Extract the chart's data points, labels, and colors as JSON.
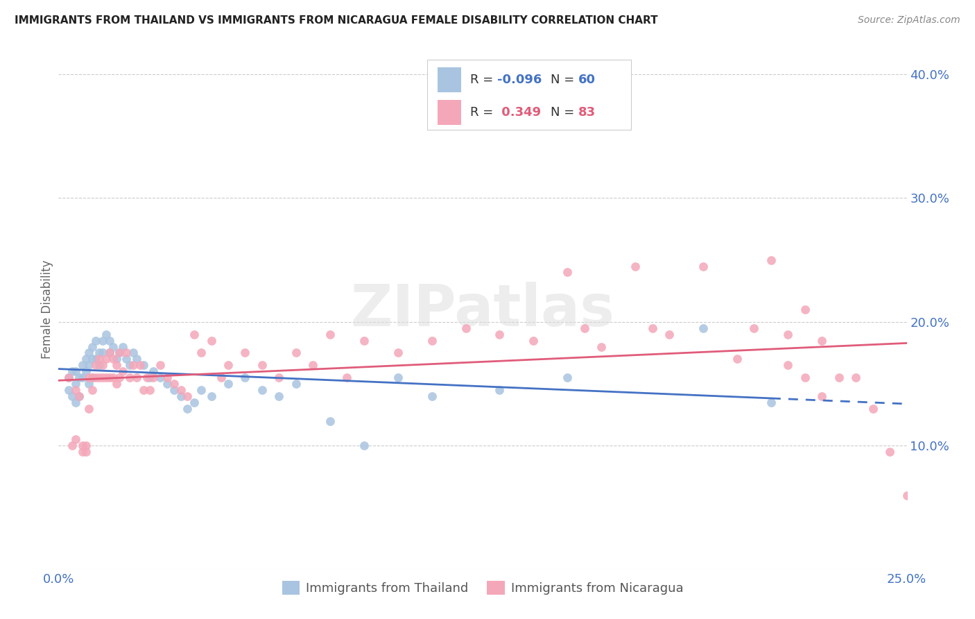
{
  "title": "IMMIGRANTS FROM THAILAND VS IMMIGRANTS FROM NICARAGUA FEMALE DISABILITY CORRELATION CHART",
  "source": "Source: ZipAtlas.com",
  "ylabel": "Female Disability",
  "x_min": 0.0,
  "x_max": 0.25,
  "y_min": 0.0,
  "y_max": 0.42,
  "thailand_color": "#a8c4e0",
  "nicaragua_color": "#f4a7b9",
  "thailand_line_color": "#4472c4",
  "nicaragua_line_color": "#e05c7a",
  "R_thailand": -0.096,
  "N_thailand": 60,
  "R_nicaragua": 0.349,
  "N_nicaragua": 83,
  "background_color": "#ffffff",
  "thailand_x": [
    0.003,
    0.003,
    0.004,
    0.004,
    0.005,
    0.005,
    0.005,
    0.006,
    0.006,
    0.007,
    0.007,
    0.008,
    0.008,
    0.009,
    0.009,
    0.009,
    0.01,
    0.01,
    0.01,
    0.011,
    0.011,
    0.012,
    0.012,
    0.013,
    0.013,
    0.014,
    0.015,
    0.015,
    0.016,
    0.017,
    0.018,
    0.019,
    0.02,
    0.021,
    0.022,
    0.023,
    0.025,
    0.027,
    0.028,
    0.03,
    0.032,
    0.034,
    0.036,
    0.038,
    0.04,
    0.042,
    0.045,
    0.05,
    0.055,
    0.06,
    0.065,
    0.07,
    0.08,
    0.09,
    0.1,
    0.11,
    0.13,
    0.15,
    0.19,
    0.21
  ],
  "thailand_y": [
    0.155,
    0.145,
    0.16,
    0.14,
    0.16,
    0.15,
    0.135,
    0.155,
    0.14,
    0.165,
    0.155,
    0.17,
    0.16,
    0.175,
    0.165,
    0.15,
    0.18,
    0.17,
    0.155,
    0.185,
    0.17,
    0.175,
    0.165,
    0.185,
    0.175,
    0.19,
    0.185,
    0.175,
    0.18,
    0.17,
    0.175,
    0.18,
    0.17,
    0.165,
    0.175,
    0.17,
    0.165,
    0.155,
    0.16,
    0.155,
    0.15,
    0.145,
    0.14,
    0.13,
    0.135,
    0.145,
    0.14,
    0.15,
    0.155,
    0.145,
    0.14,
    0.15,
    0.12,
    0.1,
    0.155,
    0.14,
    0.145,
    0.155,
    0.195,
    0.135
  ],
  "nicaragua_x": [
    0.003,
    0.004,
    0.005,
    0.005,
    0.006,
    0.007,
    0.007,
    0.008,
    0.008,
    0.009,
    0.009,
    0.01,
    0.01,
    0.011,
    0.011,
    0.012,
    0.012,
    0.013,
    0.013,
    0.014,
    0.014,
    0.015,
    0.015,
    0.016,
    0.016,
    0.017,
    0.017,
    0.018,
    0.018,
    0.019,
    0.02,
    0.021,
    0.022,
    0.023,
    0.024,
    0.025,
    0.026,
    0.027,
    0.028,
    0.03,
    0.032,
    0.034,
    0.036,
    0.038,
    0.04,
    0.042,
    0.045,
    0.048,
    0.05,
    0.055,
    0.06,
    0.065,
    0.07,
    0.075,
    0.08,
    0.085,
    0.09,
    0.1,
    0.11,
    0.12,
    0.13,
    0.14,
    0.15,
    0.155,
    0.16,
    0.17,
    0.175,
    0.18,
    0.19,
    0.2,
    0.205,
    0.21,
    0.215,
    0.215,
    0.22,
    0.22,
    0.225,
    0.225,
    0.23,
    0.235,
    0.24,
    0.245,
    0.25
  ],
  "nicaragua_y": [
    0.155,
    0.1,
    0.145,
    0.105,
    0.14,
    0.1,
    0.095,
    0.1,
    0.095,
    0.155,
    0.13,
    0.155,
    0.145,
    0.165,
    0.155,
    0.17,
    0.155,
    0.165,
    0.155,
    0.17,
    0.155,
    0.175,
    0.155,
    0.17,
    0.155,
    0.165,
    0.15,
    0.175,
    0.155,
    0.16,
    0.175,
    0.155,
    0.165,
    0.155,
    0.165,
    0.145,
    0.155,
    0.145,
    0.155,
    0.165,
    0.155,
    0.15,
    0.145,
    0.14,
    0.19,
    0.175,
    0.185,
    0.155,
    0.165,
    0.175,
    0.165,
    0.155,
    0.175,
    0.165,
    0.19,
    0.155,
    0.185,
    0.175,
    0.185,
    0.195,
    0.19,
    0.185,
    0.24,
    0.195,
    0.18,
    0.245,
    0.195,
    0.19,
    0.245,
    0.17,
    0.195,
    0.25,
    0.19,
    0.165,
    0.21,
    0.155,
    0.185,
    0.14,
    0.155,
    0.155,
    0.13,
    0.095,
    0.06
  ]
}
